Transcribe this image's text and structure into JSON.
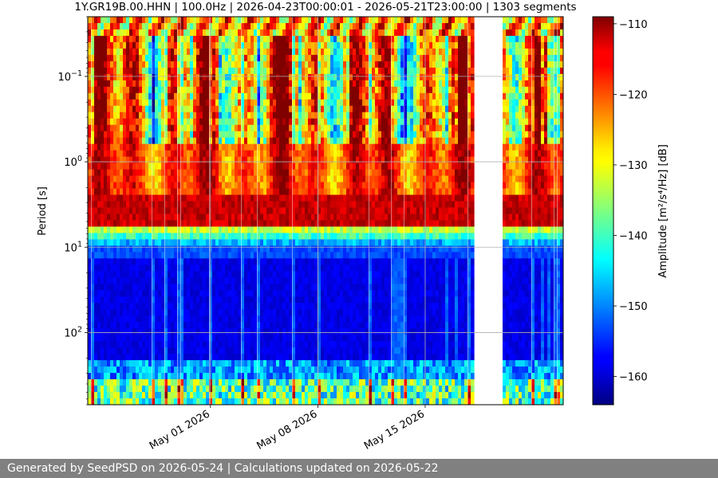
{
  "chart_data": {
    "type": "heatmap",
    "title": "1Y.GR19B.00.HHN | 100.0Hz | 2026-04-23T00:00:01 - 2026-05-21T23:00:00 | 1303 segments",
    "ylabel": "Period [s]",
    "y_scale": "log",
    "y_inverted": true,
    "y_range_seconds": [
      0.02,
      700
    ],
    "y_ticks": [
      {
        "value": 0.1,
        "base": "10",
        "exp": "−1"
      },
      {
        "value": 1,
        "base": "10",
        "exp": "0"
      },
      {
        "value": 10,
        "base": "10",
        "exp": "1"
      },
      {
        "value": 100,
        "base": "10",
        "exp": "2"
      }
    ],
    "x_range_dates": [
      "2026-04-23",
      "2026-05-24"
    ],
    "x_ticks": [
      {
        "label": "May 01 2026",
        "date": "2026-05-01"
      },
      {
        "label": "May 08 2026",
        "date": "2026-05-08"
      },
      {
        "label": "May 15 2026",
        "date": "2026-05-15"
      }
    ],
    "data_gap_dates": [
      "2026-05-19",
      "2026-05-20"
    ],
    "grid": true,
    "colorbar": {
      "label": "Amplitude [m²/s⁴/Hz] [dB]",
      "colormap": "jet",
      "range_db": [
        -164,
        -109
      ],
      "ticks": [
        -110,
        -120,
        -130,
        -140,
        -150,
        -160
      ]
    }
  },
  "footer": {
    "text": "Generated by SeedPSD on 2026-05-24 | Calculations updated on 2026-05-22",
    "background": "#808080"
  }
}
